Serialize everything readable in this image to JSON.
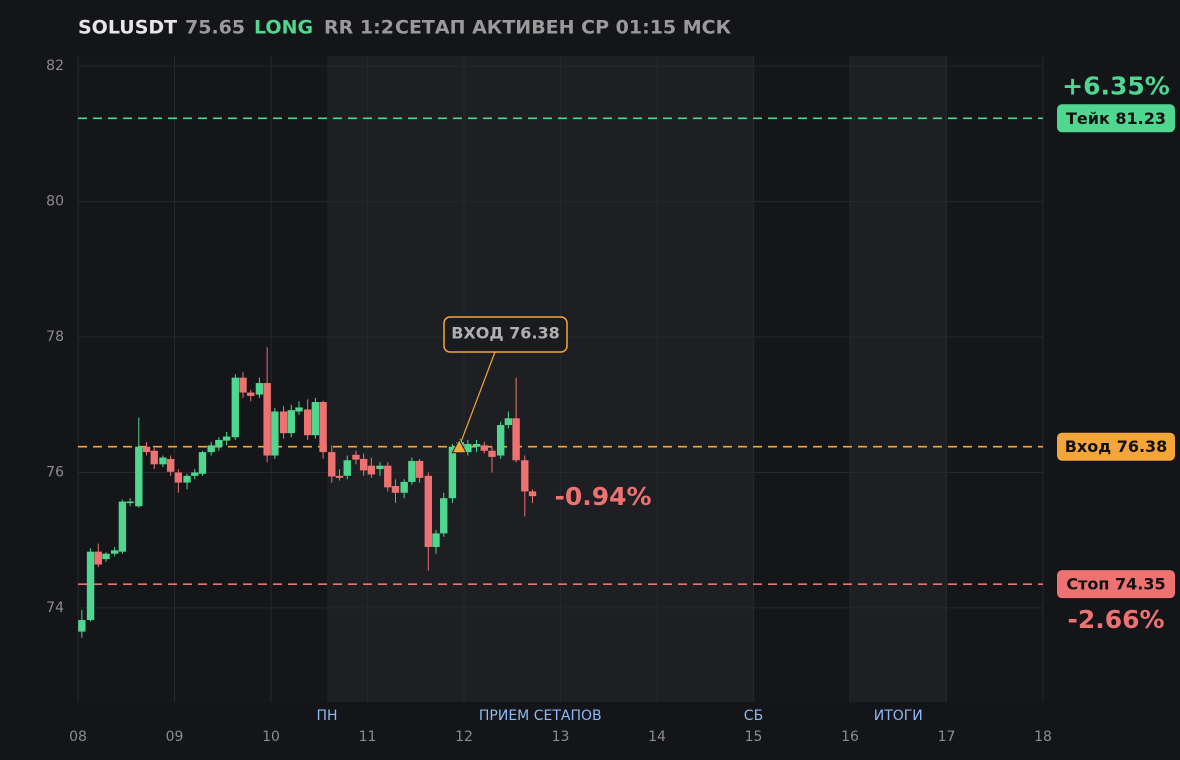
{
  "chart_data": {
    "type": "candlestick",
    "header": {
      "symbol": "SOLUSDT",
      "price": "75.65",
      "side": "LONG",
      "rr": "RR 1:2",
      "status": "СЕТАП АКТИВЕН СР 01:15 МСК"
    },
    "xlim": [
      8,
      18
    ],
    "xticks": [
      {
        "value": 8,
        "label": "08"
      },
      {
        "value": 9,
        "label": "09"
      },
      10,
      11,
      12,
      13,
      14,
      15,
      16,
      17,
      18
    ],
    "ylim": [
      72.61,
      82.15
    ],
    "yticks": [
      74,
      76,
      78,
      80,
      82
    ],
    "grid": true,
    "up_color": "#4fd68f",
    "down_color": "#ef7272",
    "sessions": [
      {
        "start": 10.58,
        "end": 15,
        "label": "ПРИЕМ СЕТАПОВ",
        "start_label": "ПН",
        "end_label": "СБ"
      },
      {
        "start": 16,
        "end": 17,
        "label": "ИТОГИ"
      }
    ],
    "x": [
      8.04,
      8.13,
      8.21,
      8.29,
      8.38,
      8.46,
      8.54,
      8.63,
      8.71,
      8.79,
      8.88,
      8.96,
      9.04,
      9.13,
      9.21,
      9.29,
      9.38,
      9.46,
      9.54,
      9.63,
      9.71,
      9.79,
      9.88,
      9.96,
      10.04,
      10.13,
      10.21,
      10.29,
      10.38,
      10.46,
      10.54,
      10.63,
      10.71,
      10.79,
      10.88,
      10.96,
      11.04,
      11.13,
      11.21,
      11.29,
      11.38,
      11.46,
      11.54,
      11.63,
      11.71,
      11.79,
      11.88,
      11.96,
      12.04,
      12.13,
      12.21,
      12.29,
      12.38,
      12.46,
      12.54,
      12.63,
      12.71
    ],
    "open": [
      73.65,
      73.82,
      74.83,
      74.72,
      74.8,
      74.83,
      75.55,
      75.5,
      76.38,
      76.32,
      76.12,
      76.2,
      76.0,
      75.85,
      75.95,
      75.98,
      76.3,
      76.38,
      76.47,
      76.52,
      77.4,
      77.18,
      77.15,
      77.32,
      76.25,
      76.9,
      76.58,
      76.9,
      76.93,
      76.55,
      77.04,
      76.3,
      75.95,
      75.95,
      76.26,
      76.2,
      76.1,
      76.05,
      76.1,
      75.8,
      75.7,
      75.86,
      76.17,
      75.95,
      74.9,
      75.1,
      75.62,
      76.38,
      76.3,
      76.38,
      76.4,
      76.32,
      76.25,
      76.7,
      76.8,
      76.18,
      75.72
    ],
    "high": [
      73.97,
      74.88,
      74.95,
      74.82,
      74.9,
      75.6,
      75.62,
      76.81,
      76.45,
      76.36,
      76.25,
      76.25,
      76.05,
      75.98,
      76.05,
      76.32,
      76.45,
      76.52,
      76.6,
      77.45,
      77.48,
      77.22,
      77.4,
      77.85,
      76.95,
      76.98,
      77.0,
      77.05,
      77.08,
      77.1,
      77.06,
      76.4,
      76.05,
      76.25,
      76.32,
      76.28,
      76.22,
      76.15,
      76.15,
      75.9,
      75.9,
      76.22,
      76.2,
      76.0,
      75.15,
      75.7,
      76.42,
      76.5,
      76.48,
      76.48,
      76.45,
      76.38,
      76.75,
      76.9,
      77.4,
      76.25,
      75.75
    ],
    "low": [
      73.56,
      73.8,
      74.6,
      74.68,
      74.76,
      74.8,
      75.5,
      75.48,
      76.25,
      76.05,
      76.08,
      75.95,
      75.7,
      75.75,
      75.9,
      75.95,
      76.25,
      76.32,
      76.4,
      76.48,
      77.1,
      77.05,
      77.1,
      76.15,
      76.2,
      76.5,
      76.52,
      76.85,
      76.48,
      76.5,
      76.2,
      75.85,
      75.88,
      75.9,
      76.12,
      75.95,
      75.92,
      75.95,
      75.72,
      75.55,
      75.62,
      75.82,
      75.85,
      74.55,
      74.8,
      75.05,
      75.55,
      76.3,
      76.25,
      76.3,
      76.28,
      76.0,
      76.2,
      76.65,
      76.15,
      75.35,
      75.55
    ],
    "close": [
      73.82,
      74.83,
      74.64,
      74.8,
      74.85,
      75.57,
      75.57,
      76.38,
      76.3,
      76.12,
      76.22,
      76.01,
      75.85,
      75.95,
      76.0,
      76.3,
      76.4,
      76.48,
      76.53,
      77.4,
      77.18,
      77.13,
      77.32,
      76.25,
      76.9,
      76.58,
      76.92,
      76.96,
      76.55,
      77.04,
      76.3,
      75.94,
      75.92,
      76.18,
      76.19,
      76.03,
      75.97,
      76.1,
      75.78,
      75.7,
      75.86,
      76.17,
      75.92,
      74.9,
      75.1,
      75.62,
      76.38,
      76.45,
      76.42,
      76.42,
      76.32,
      76.23,
      76.7,
      76.8,
      76.18,
      75.72,
      75.65
    ],
    "levels": [
      {
        "label": "Тейк 81.23",
        "value": 81.23,
        "color": "#4fd68f",
        "change": "+6.35%"
      },
      {
        "label": "Вход 76.38",
        "value": 76.38,
        "color": "#f5a53a"
      },
      {
        "label": "Стоп 74.35",
        "value": 74.35,
        "color": "#ef7272",
        "change": "-2.66%"
      }
    ],
    "annotation": {
      "text": "ВХОД 76.38",
      "x": 11.95,
      "y": 76.38,
      "color": "#f5a53a"
    },
    "current_change": "-0.94%"
  }
}
